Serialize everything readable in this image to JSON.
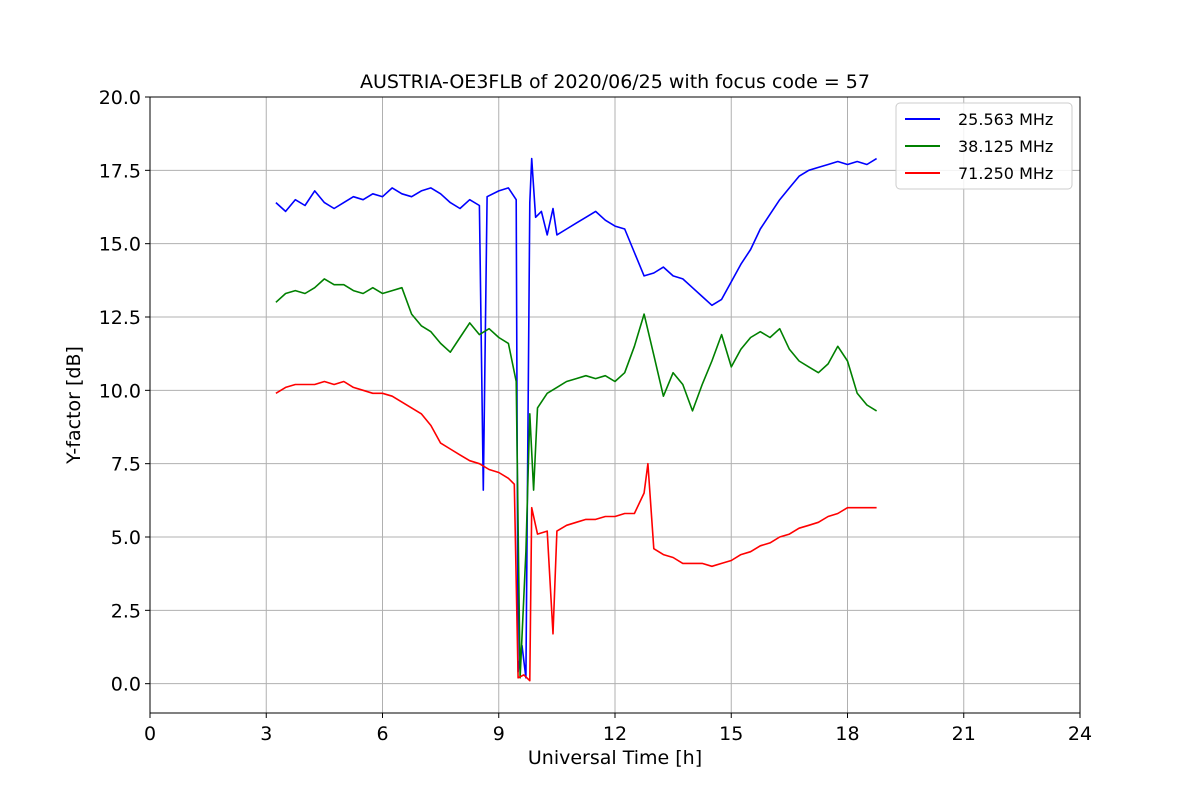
{
  "chart_data": {
    "type": "line",
    "title": "AUSTRIA-OE3FLB of 2020/06/25 with focus code = 57",
    "xlabel": "Universal Time [h]",
    "ylabel": "Y-factor [dB]",
    "xlim": [
      0,
      24
    ],
    "ylim": [
      -1,
      20
    ],
    "xticks": [
      0,
      3,
      6,
      9,
      12,
      15,
      18,
      21,
      24
    ],
    "xtick_labels": [
      "0",
      "3",
      "6",
      "9",
      "12",
      "15",
      "18",
      "21",
      "24"
    ],
    "yticks": [
      0,
      2.5,
      5,
      7.5,
      10,
      12.5,
      15,
      17.5,
      20
    ],
    "ytick_labels": [
      "0.0",
      "2.5",
      "5.0",
      "7.5",
      "10.0",
      "12.5",
      "15.0",
      "17.5",
      "20.0"
    ],
    "grid": true,
    "legend_position": "top-right",
    "series": [
      {
        "name": "25.563 MHz",
        "color": "#0000ff",
        "points": [
          [
            3.25,
            16.4
          ],
          [
            3.5,
            16.1
          ],
          [
            3.75,
            16.5
          ],
          [
            4.0,
            16.3
          ],
          [
            4.25,
            16.8
          ],
          [
            4.5,
            16.4
          ],
          [
            4.75,
            16.2
          ],
          [
            5.0,
            16.4
          ],
          [
            5.25,
            16.6
          ],
          [
            5.5,
            16.5
          ],
          [
            5.75,
            16.7
          ],
          [
            6.0,
            16.6
          ],
          [
            6.25,
            16.9
          ],
          [
            6.5,
            16.7
          ],
          [
            6.75,
            16.6
          ],
          [
            7.0,
            16.8
          ],
          [
            7.25,
            16.9
          ],
          [
            7.5,
            16.7
          ],
          [
            7.75,
            16.4
          ],
          [
            8.0,
            16.2
          ],
          [
            8.25,
            16.5
          ],
          [
            8.5,
            16.3
          ],
          [
            8.6,
            6.6
          ],
          [
            8.7,
            16.6
          ],
          [
            9.0,
            16.8
          ],
          [
            9.25,
            16.9
          ],
          [
            9.45,
            16.5
          ],
          [
            9.5,
            0.4
          ],
          [
            9.6,
            1.3
          ],
          [
            9.7,
            0.2
          ],
          [
            9.8,
            16.4
          ],
          [
            9.85,
            17.9
          ],
          [
            9.95,
            15.9
          ],
          [
            10.1,
            16.1
          ],
          [
            10.25,
            15.3
          ],
          [
            10.4,
            16.2
          ],
          [
            10.5,
            15.3
          ],
          [
            10.75,
            15.5
          ],
          [
            11.0,
            15.7
          ],
          [
            11.25,
            15.9
          ],
          [
            11.5,
            16.1
          ],
          [
            11.75,
            15.8
          ],
          [
            12.0,
            15.6
          ],
          [
            12.25,
            15.5
          ],
          [
            12.5,
            14.7
          ],
          [
            12.75,
            13.9
          ],
          [
            13.0,
            14.0
          ],
          [
            13.25,
            14.2
          ],
          [
            13.5,
            13.9
          ],
          [
            13.75,
            13.8
          ],
          [
            14.0,
            13.5
          ],
          [
            14.25,
            13.2
          ],
          [
            14.5,
            12.9
          ],
          [
            14.75,
            13.1
          ],
          [
            15.0,
            13.7
          ],
          [
            15.25,
            14.3
          ],
          [
            15.5,
            14.8
          ],
          [
            15.75,
            15.5
          ],
          [
            16.0,
            16.0
          ],
          [
            16.25,
            16.5
          ],
          [
            16.5,
            16.9
          ],
          [
            16.75,
            17.3
          ],
          [
            17.0,
            17.5
          ],
          [
            17.25,
            17.6
          ],
          [
            17.5,
            17.7
          ],
          [
            17.75,
            17.8
          ],
          [
            18.0,
            17.7
          ],
          [
            18.25,
            17.8
          ],
          [
            18.5,
            17.7
          ],
          [
            18.75,
            17.9
          ]
        ]
      },
      {
        "name": "38.125 MHz",
        "color": "#008000",
        "points": [
          [
            3.25,
            13.0
          ],
          [
            3.5,
            13.3
          ],
          [
            3.75,
            13.4
          ],
          [
            4.0,
            13.3
          ],
          [
            4.25,
            13.5
          ],
          [
            4.5,
            13.8
          ],
          [
            4.75,
            13.6
          ],
          [
            5.0,
            13.6
          ],
          [
            5.25,
            13.4
          ],
          [
            5.5,
            13.3
          ],
          [
            5.75,
            13.5
          ],
          [
            6.0,
            13.3
          ],
          [
            6.25,
            13.4
          ],
          [
            6.5,
            13.5
          ],
          [
            6.75,
            12.6
          ],
          [
            7.0,
            12.2
          ],
          [
            7.25,
            12.0
          ],
          [
            7.5,
            11.6
          ],
          [
            7.75,
            11.3
          ],
          [
            8.0,
            11.8
          ],
          [
            8.25,
            12.3
          ],
          [
            8.5,
            11.9
          ],
          [
            8.75,
            12.1
          ],
          [
            9.0,
            11.8
          ],
          [
            9.25,
            11.6
          ],
          [
            9.45,
            10.3
          ],
          [
            9.55,
            0.2
          ],
          [
            9.7,
            4.5
          ],
          [
            9.8,
            9.2
          ],
          [
            9.9,
            6.6
          ],
          [
            10.0,
            9.4
          ],
          [
            10.25,
            9.9
          ],
          [
            10.5,
            10.1
          ],
          [
            10.75,
            10.3
          ],
          [
            11.0,
            10.4
          ],
          [
            11.25,
            10.5
          ],
          [
            11.5,
            10.4
          ],
          [
            11.75,
            10.5
          ],
          [
            12.0,
            10.3
          ],
          [
            12.25,
            10.6
          ],
          [
            12.5,
            11.5
          ],
          [
            12.75,
            12.6
          ],
          [
            13.0,
            11.2
          ],
          [
            13.25,
            9.8
          ],
          [
            13.5,
            10.6
          ],
          [
            13.75,
            10.2
          ],
          [
            14.0,
            9.3
          ],
          [
            14.25,
            10.2
          ],
          [
            14.5,
            11.0
          ],
          [
            14.75,
            11.9
          ],
          [
            15.0,
            10.8
          ],
          [
            15.25,
            11.4
          ],
          [
            15.5,
            11.8
          ],
          [
            15.75,
            12.0
          ],
          [
            16.0,
            11.8
          ],
          [
            16.25,
            12.1
          ],
          [
            16.5,
            11.4
          ],
          [
            16.75,
            11.0
          ],
          [
            17.0,
            10.8
          ],
          [
            17.25,
            10.6
          ],
          [
            17.5,
            10.9
          ],
          [
            17.75,
            11.5
          ],
          [
            18.0,
            11.0
          ],
          [
            18.25,
            9.9
          ],
          [
            18.5,
            9.5
          ],
          [
            18.75,
            9.3
          ]
        ]
      },
      {
        "name": "71.250 MHz",
        "color": "#ff0000",
        "points": [
          [
            3.25,
            9.9
          ],
          [
            3.5,
            10.1
          ],
          [
            3.75,
            10.2
          ],
          [
            4.0,
            10.2
          ],
          [
            4.25,
            10.2
          ],
          [
            4.5,
            10.3
          ],
          [
            4.75,
            10.2
          ],
          [
            5.0,
            10.3
          ],
          [
            5.25,
            10.1
          ],
          [
            5.5,
            10.0
          ],
          [
            5.75,
            9.9
          ],
          [
            6.0,
            9.9
          ],
          [
            6.25,
            9.8
          ],
          [
            6.5,
            9.6
          ],
          [
            6.75,
            9.4
          ],
          [
            7.0,
            9.2
          ],
          [
            7.25,
            8.8
          ],
          [
            7.5,
            8.2
          ],
          [
            7.75,
            8.0
          ],
          [
            8.0,
            7.8
          ],
          [
            8.25,
            7.6
          ],
          [
            8.5,
            7.5
          ],
          [
            8.75,
            7.3
          ],
          [
            9.0,
            7.2
          ],
          [
            9.25,
            7.0
          ],
          [
            9.4,
            6.8
          ],
          [
            9.5,
            0.2
          ],
          [
            9.65,
            0.3
          ],
          [
            9.8,
            0.1
          ],
          [
            9.85,
            6.0
          ],
          [
            10.0,
            5.1
          ],
          [
            10.25,
            5.2
          ],
          [
            10.4,
            1.7
          ],
          [
            10.5,
            5.2
          ],
          [
            10.75,
            5.4
          ],
          [
            11.0,
            5.5
          ],
          [
            11.25,
            5.6
          ],
          [
            11.5,
            5.6
          ],
          [
            11.75,
            5.7
          ],
          [
            12.0,
            5.7
          ],
          [
            12.25,
            5.8
          ],
          [
            12.5,
            5.8
          ],
          [
            12.75,
            6.5
          ],
          [
            12.85,
            7.5
          ],
          [
            13.0,
            4.6
          ],
          [
            13.25,
            4.4
          ],
          [
            13.5,
            4.3
          ],
          [
            13.75,
            4.1
          ],
          [
            14.0,
            4.1
          ],
          [
            14.25,
            4.1
          ],
          [
            14.5,
            4.0
          ],
          [
            14.75,
            4.1
          ],
          [
            15.0,
            4.2
          ],
          [
            15.25,
            4.4
          ],
          [
            15.5,
            4.5
          ],
          [
            15.75,
            4.7
          ],
          [
            16.0,
            4.8
          ],
          [
            16.25,
            5.0
          ],
          [
            16.5,
            5.1
          ],
          [
            16.75,
            5.3
          ],
          [
            17.0,
            5.4
          ],
          [
            17.25,
            5.5
          ],
          [
            17.5,
            5.7
          ],
          [
            17.75,
            5.8
          ],
          [
            18.0,
            6.0
          ],
          [
            18.25,
            6.0
          ],
          [
            18.5,
            6.0
          ],
          [
            18.75,
            6.0
          ]
        ]
      }
    ]
  }
}
